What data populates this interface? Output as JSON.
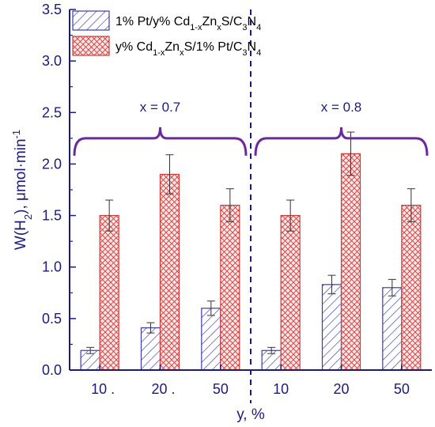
{
  "chart_data": {
    "type": "bar",
    "ylabel_parts": {
      "base": "W(H",
      "sub": "2",
      "mid": "), μmol·min",
      "sup": "-1"
    },
    "xlabel": "y, %",
    "ylim": [
      0,
      3.5
    ],
    "yticks": [
      "0.0",
      "0.5",
      "1.0",
      "1.5",
      "2.0",
      "2.5",
      "3.0",
      "3.5"
    ],
    "categories": [
      "10 .",
      "20 .",
      "50",
      "10",
      "20",
      "50"
    ],
    "series": [
      {
        "values": [
          0.19,
          0.41,
          0.6,
          0.19,
          0.83,
          0.8
        ],
        "errors": [
          0.03,
          0.05,
          0.07,
          0.03,
          0.09,
          0.08
        ],
        "color": "#3b3bb0"
      },
      {
        "values": [
          1.5,
          1.9,
          1.6,
          1.5,
          2.1,
          1.6
        ],
        "errors": [
          0.15,
          0.19,
          0.16,
          0.15,
          0.21,
          0.16
        ],
        "color": "#d23a3a"
      }
    ],
    "legend": [
      {
        "pre": "1% Pt/y% Cd",
        "s1": "1-x",
        "m1": "Zn",
        "s2": "x",
        "m2": "S/C",
        "s3": "3",
        "m3": "N",
        "s4": "4",
        "post": ""
      },
      {
        "pre": "y% Cd",
        "s1": "1-x",
        "m1": "Zn",
        "s2": "x",
        "m2": "S/1% Pt/C",
        "s3": "3",
        "m3": "N",
        "s4": "4",
        "post": ""
      }
    ],
    "groups": [
      {
        "label": "x = 0.7",
        "start": 0,
        "end": 2
      },
      {
        "label": "x = 0.8",
        "start": 3,
        "end": 5
      }
    ],
    "brace_value": 2.25,
    "divider_after": 2,
    "accent_color": "#6a2a9e",
    "axis_color": "#1a1a80"
  }
}
